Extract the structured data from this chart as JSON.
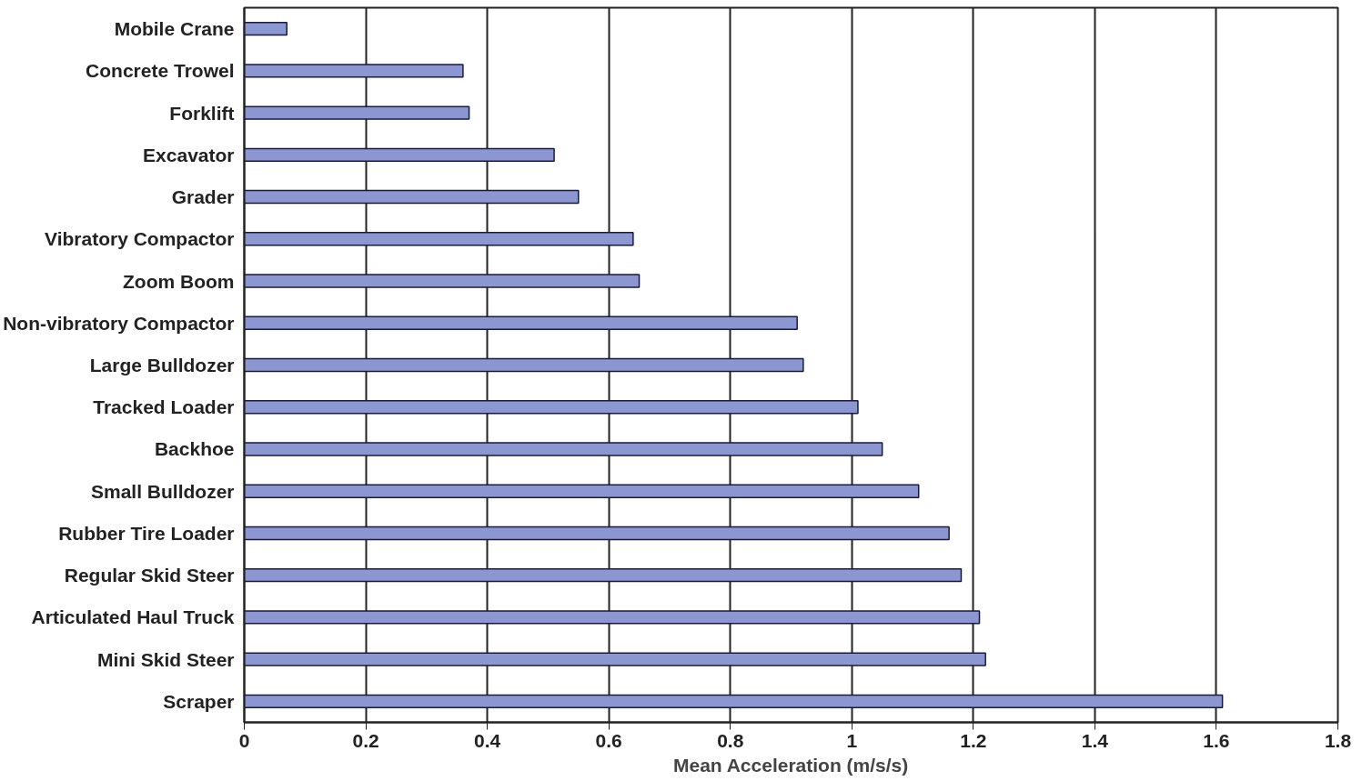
{
  "chart_data": {
    "type": "bar",
    "orientation": "horizontal",
    "xlabel": "Mean Acceleration (m/s/s)",
    "categories": [
      "Mobile Crane",
      "Concrete Trowel",
      "Forklift",
      "Excavator",
      "Grader",
      "Vibratory Compactor",
      "Zoom Boom",
      "Non-vibratory Compactor",
      "Large Bulldozer",
      "Tracked Loader",
      "Backhoe",
      "Small Bulldozer",
      "Rubber Tire Loader",
      "Regular Skid Steer",
      "Articulated Haul Truck",
      "Mini Skid Steer",
      "Scraper"
    ],
    "values": [
      0.07,
      0.36,
      0.37,
      0.51,
      0.55,
      0.64,
      0.65,
      0.91,
      0.92,
      1.01,
      1.05,
      1.11,
      1.16,
      1.18,
      1.21,
      1.22,
      1.61
    ],
    "color": "#8c96d0",
    "xlim": [
      0,
      1.8
    ],
    "xticks": [
      0,
      0.2,
      0.4,
      0.6,
      0.8,
      1,
      1.2,
      1.4,
      1.6,
      1.8
    ],
    "grid": "x"
  }
}
